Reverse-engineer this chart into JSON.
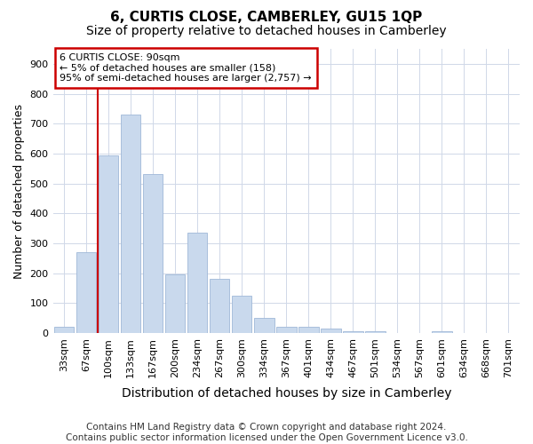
{
  "title": "6, CURTIS CLOSE, CAMBERLEY, GU15 1QP",
  "subtitle": "Size of property relative to detached houses in Camberley",
  "xlabel": "Distribution of detached houses by size in Camberley",
  "ylabel": "Number of detached properties",
  "categories": [
    "33sqm",
    "67sqm",
    "100sqm",
    "133sqm",
    "167sqm",
    "200sqm",
    "234sqm",
    "267sqm",
    "300sqm",
    "334sqm",
    "367sqm",
    "401sqm",
    "434sqm",
    "467sqm",
    "501sqm",
    "534sqm",
    "567sqm",
    "601sqm",
    "634sqm",
    "668sqm",
    "701sqm"
  ],
  "values": [
    20,
    270,
    595,
    730,
    530,
    195,
    335,
    180,
    125,
    50,
    20,
    20,
    15,
    5,
    5,
    0,
    0,
    5,
    0,
    0,
    0
  ],
  "bar_color": "#c9d9ed",
  "bar_edge_color": "#a0b8d8",
  "vline_color": "#cc0000",
  "vline_x_index": 2,
  "annotation_text": "6 CURTIS CLOSE: 90sqm\n← 5% of detached houses are smaller (158)\n95% of semi-detached houses are larger (2,757) →",
  "annotation_box_color": "#ffffff",
  "annotation_box_edge": "#cc0000",
  "footer": "Contains HM Land Registry data © Crown copyright and database right 2024.\nContains public sector information licensed under the Open Government Licence v3.0.",
  "ylim": [
    0,
    950
  ],
  "yticks": [
    0,
    100,
    200,
    300,
    400,
    500,
    600,
    700,
    800,
    900
  ],
  "bg_color": "#ffffff",
  "grid_color": "#d0d8e8",
  "title_fontsize": 11,
  "subtitle_fontsize": 10,
  "axis_label_fontsize": 9,
  "tick_fontsize": 8,
  "footer_fontsize": 7.5
}
